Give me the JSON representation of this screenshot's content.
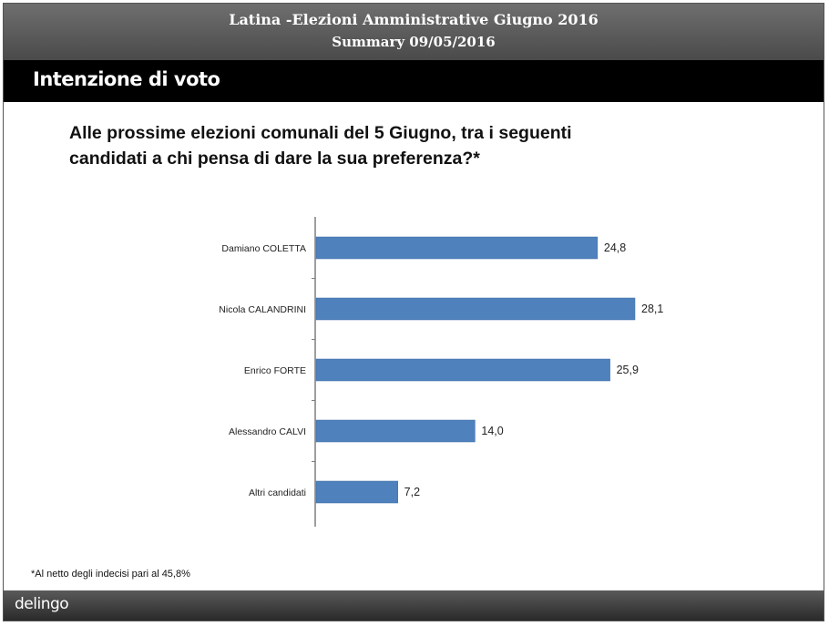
{
  "header": {
    "title": "Latina -Elezioni Amministrative Giugno 2016",
    "subtitle": "Summary 09/05/2016"
  },
  "section": {
    "title": "Intenzione di voto"
  },
  "question": {
    "line1": "Alle prossime elezioni comunali del 5 Giugno, tra i seguenti",
    "line2": "candidati a chi pensa di dare la sua preferenza?*"
  },
  "chart_data": {
    "type": "bar",
    "orientation": "horizontal",
    "categories": [
      "Damiano COLETTA",
      "Nicola CALANDRINI",
      "Enrico FORTE",
      "Alessandro CALVI",
      "Altri candidati"
    ],
    "values": [
      24.8,
      28.1,
      25.9,
      14.0,
      7.2
    ],
    "value_labels": [
      "24,8",
      "28,1",
      "25,9",
      "14,0",
      "7,2"
    ],
    "bar_color": "#4f81bd",
    "title": "",
    "xlabel": "",
    "ylabel": "",
    "xlim": [
      0,
      28.1
    ],
    "grid": false
  },
  "footnote": "*Al netto degli indecisi pari al 45,8%",
  "footer": {
    "logo_text": "delingo",
    "logo_name": "delugo-logo"
  }
}
